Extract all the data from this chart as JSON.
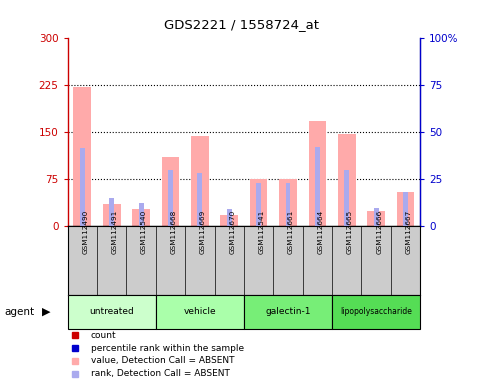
{
  "title": "GDS2221 / 1558724_at",
  "samples": [
    "GSM112490",
    "GSM112491",
    "GSM112540",
    "GSM112668",
    "GSM112669",
    "GSM112670",
    "GSM112541",
    "GSM112661",
    "GSM112664",
    "GSM112665",
    "GSM112666",
    "GSM112667"
  ],
  "pink_values": [
    222,
    35,
    28,
    110,
    145,
    18,
    75,
    75,
    168,
    148,
    25,
    55
  ],
  "blue_rank": [
    125,
    45,
    38,
    90,
    85,
    28,
    70,
    70,
    127,
    90,
    30,
    55
  ],
  "ylim_left": [
    0,
    300
  ],
  "ylim_right": [
    0,
    100
  ],
  "yticks_left": [
    0,
    75,
    150,
    225,
    300
  ],
  "ytick_labels_left": [
    "0",
    "75",
    "150",
    "225",
    "300"
  ],
  "yticks_right": [
    0,
    25,
    50,
    75,
    100
  ],
  "ytick_labels_right": [
    "0",
    "25",
    "50",
    "75",
    "100%"
  ],
  "hlines": [
    75,
    150,
    225
  ],
  "groups": [
    {
      "label": "untreated",
      "indices": [
        0,
        1,
        2
      ],
      "color": "#ccffcc"
    },
    {
      "label": "vehicle",
      "indices": [
        3,
        4,
        5
      ],
      "color": "#aaffaa"
    },
    {
      "label": "galectin-1",
      "indices": [
        6,
        7,
        8
      ],
      "color": "#77ee77"
    },
    {
      "label": "lipopolysaccharide",
      "indices": [
        9,
        10,
        11
      ],
      "color": "#55dd55"
    }
  ],
  "bar_width": 0.6,
  "pink_color": "#ffaaaa",
  "blue_color": "#aaaaee",
  "legend_items": [
    {
      "color": "#cc0000",
      "label": "count",
      "marker": "s"
    },
    {
      "color": "#0000cc",
      "label": "percentile rank within the sample",
      "marker": "s"
    },
    {
      "color": "#ffaaaa",
      "label": "value, Detection Call = ABSENT",
      "marker": "s"
    },
    {
      "color": "#aaaaee",
      "label": "rank, Detection Call = ABSENT",
      "marker": "s"
    }
  ],
  "agent_label": "agent",
  "gsm_box_color": "#cccccc",
  "background_color": "#ffffff",
  "tick_color_left": "#cc0000",
  "tick_color_right": "#0000cc"
}
